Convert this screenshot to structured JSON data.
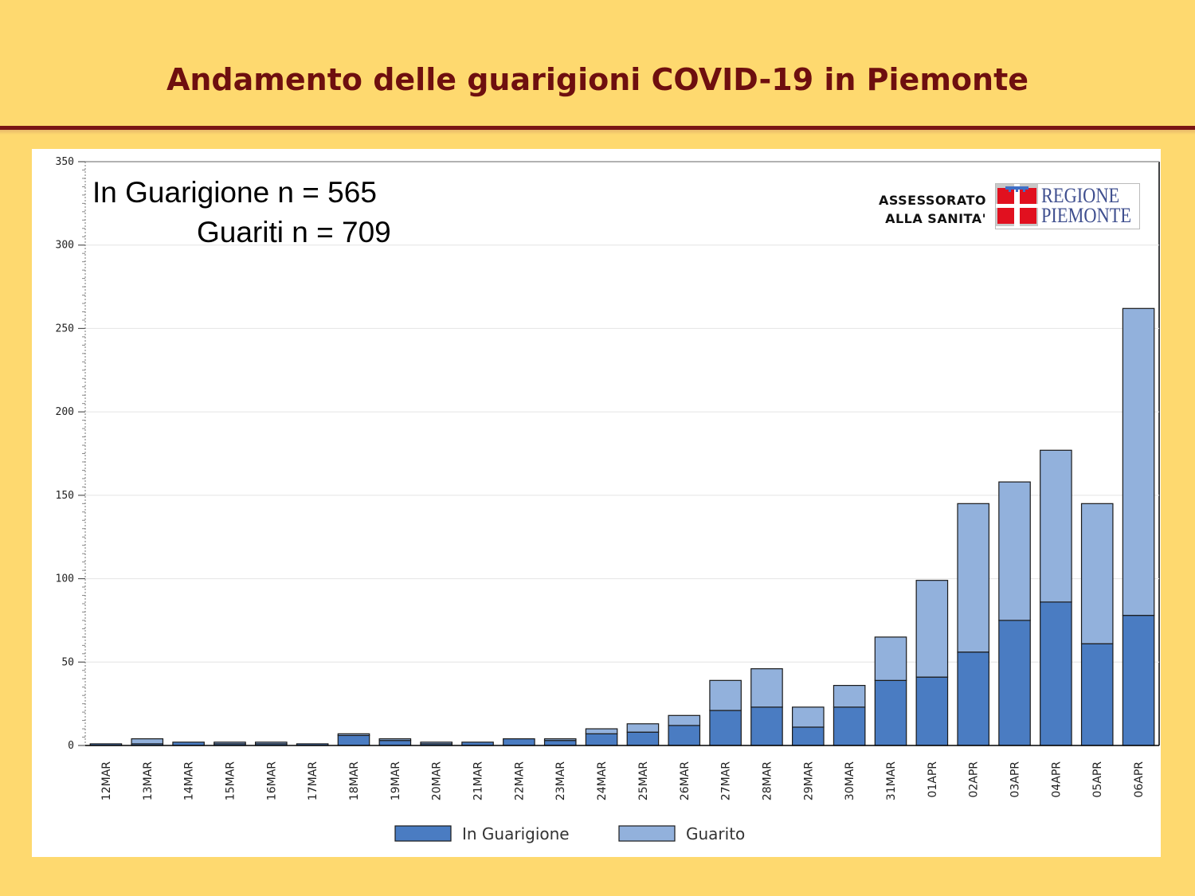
{
  "header": {
    "title": "Andamento delle guarigioni COVID-19 in Piemonte"
  },
  "counts": {
    "in_guarigione": "In Guarigione n = 565",
    "guariti": "Guariti n = 709"
  },
  "logo": {
    "assessorato_line1": "ASSESSORATO",
    "assessorato_line2": "ALLA SANITA'",
    "regione": "REGIONE",
    "piemonte": "PIEMONTE",
    "icon": "piemonte-flag-icon"
  },
  "colors": {
    "background": "#FED96F",
    "title": "#6E0F0F",
    "in_guarigione": "#4A7CC2",
    "guarito": "#92B1DC",
    "logo_red": "#E1101F"
  },
  "chart_data": {
    "type": "bar",
    "stacked": true,
    "ylim": [
      0,
      350
    ],
    "yticks": [
      0,
      50,
      100,
      150,
      200,
      250,
      300,
      350
    ],
    "grid": true,
    "legend_position": "bottom",
    "categories": [
      "12MAR",
      "13MAR",
      "14MAR",
      "15MAR",
      "16MAR",
      "17MAR",
      "18MAR",
      "19MAR",
      "20MAR",
      "21MAR",
      "22MAR",
      "23MAR",
      "24MAR",
      "25MAR",
      "26MAR",
      "27MAR",
      "28MAR",
      "29MAR",
      "30MAR",
      "31MAR",
      "01APR",
      "02APR",
      "03APR",
      "04APR",
      "05APR",
      "06APR"
    ],
    "series": [
      {
        "name": "In Guarigione",
        "values": [
          1,
          1,
          2,
          1,
          1,
          1,
          6,
          3,
          1,
          2,
          4,
          3,
          7,
          8,
          12,
          21,
          23,
          11,
          23,
          39,
          41,
          56,
          75,
          86,
          61,
          78
        ]
      },
      {
        "name": "Guarito",
        "values": [
          0,
          3,
          0,
          1,
          1,
          0,
          1,
          1,
          1,
          0,
          0,
          1,
          3,
          5,
          6,
          18,
          23,
          12,
          13,
          26,
          58,
          89,
          83,
          91,
          84,
          184
        ]
      }
    ]
  }
}
